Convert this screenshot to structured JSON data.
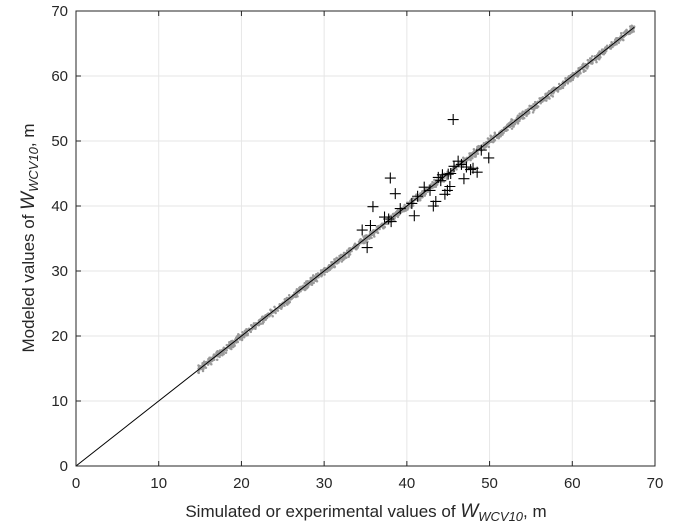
{
  "chart_data": {
    "type": "scatter",
    "xlabel": {
      "prefix": "Simulated or experimental values of ",
      "var": "W",
      "sub": "WCV10",
      "suffix": ", m"
    },
    "ylabel": {
      "prefix": "Modeled values of ",
      "var": "W",
      "sub": "WCV10",
      "suffix": ", m"
    },
    "xlim": [
      0,
      70
    ],
    "ylim": [
      0,
      70
    ],
    "xticks": [
      0,
      10,
      20,
      30,
      40,
      50,
      60,
      70
    ],
    "yticks": [
      0,
      10,
      20,
      30,
      40,
      50,
      60,
      70
    ],
    "grid": true,
    "colors": {
      "simulated": "#9a9a9a",
      "experimental": "#000000",
      "line": "#000000",
      "grid": "#e6e6e6",
      "axis": "#262626"
    },
    "reference_line": {
      "x": [
        0,
        67.5
      ],
      "y": [
        0,
        67.5
      ]
    },
    "simulated_band": {
      "x_range": [
        14.8,
        67.5
      ],
      "description_points_per_unit": 30
    },
    "experimental": {
      "marker": "+",
      "x": [
        34.6,
        35.2,
        35.6,
        35.9,
        37.3,
        37.8,
        38.0,
        38.1,
        38.6,
        39.2,
        40.6,
        40.9,
        41.3,
        42.8,
        43.2,
        43.5,
        43.8,
        44.3,
        44.6,
        44.9,
        45.0,
        45.2,
        45.6,
        45.7,
        46.2,
        46.6,
        47.2,
        47.7,
        48.0,
        48.5,
        49.0,
        49.9,
        44.1,
        45.3,
        46.9,
        42.1
      ],
      "y": [
        36.3,
        33.6,
        37.0,
        39.9,
        38.3,
        38.0,
        44.3,
        37.6,
        41.9,
        39.6,
        40.4,
        38.5,
        41.5,
        42.4,
        40.0,
        40.7,
        44.4,
        44.8,
        41.8,
        42.4,
        44.9,
        43.0,
        53.3,
        46.1,
        46.9,
        46.4,
        46.0,
        45.6,
        45.8,
        45.2,
        48.6,
        47.4,
        43.9,
        45.0,
        44.2,
        42.9
      ]
    }
  }
}
